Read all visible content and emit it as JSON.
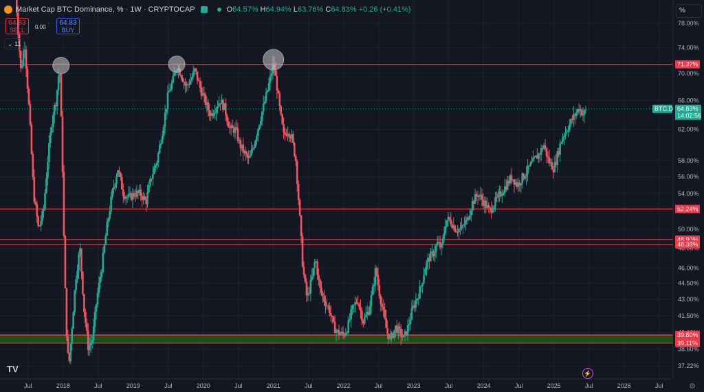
{
  "header": {
    "title": "Market Cap BTC Dominance, % · 1W · CRYPTOCAP",
    "open_label": "O",
    "open": "64.57%",
    "high_label": "H",
    "high": "64.94%",
    "low_label": "L",
    "low": "63.76%",
    "close_label": "C",
    "close": "64.83%",
    "change": "+0.26 (+0.41%)"
  },
  "trade": {
    "sell_value": "64.83",
    "sell_label": "SELL",
    "spread": "0.00",
    "buy_value": "64.83",
    "buy_label": "BUY",
    "collapse": "11"
  },
  "scale_mode": "%",
  "colors": {
    "up": "#22ab94",
    "down": "#f7525f",
    "level": "#f23645",
    "zone": "#1f4d1a",
    "zone_top": "#ff9800"
  },
  "chart_data": {
    "type": "candlestick",
    "symbol": "BTC.D",
    "last_price": "64.83%",
    "countdown": "14:02:56",
    "y_axis_ticks": [
      "78.00%",
      "74.00%",
      "70.00%",
      "66.00%",
      "62.00%",
      "58.00%",
      "56.00%",
      "54.00%",
      "52.00%",
      "50.00%",
      "48.00%",
      "46.00%",
      "44.50%",
      "43.00%",
      "41.50%",
      "40.00%",
      "38.60%",
      "37.22%"
    ],
    "y_tick_values": [
      78,
      74,
      70,
      66,
      62,
      58,
      56,
      54,
      52,
      50,
      48,
      46,
      44.5,
      43,
      41.5,
      40,
      38.6,
      37.22
    ],
    "y_scale": "log",
    "y_range": [
      36.2,
      82
    ],
    "x_axis_ticks": [
      "Jul",
      "2018",
      "Jul",
      "2019",
      "Jul",
      "2020",
      "Jul",
      "2021",
      "Jul",
      "2022",
      "Jul",
      "2023",
      "Jul",
      "2024",
      "Jul",
      "2025",
      "Jul",
      "2026",
      "Jul"
    ],
    "x_tick_values": [
      2017.5,
      2018,
      2018.5,
      2019,
      2019.5,
      2020,
      2020.5,
      2021,
      2021.5,
      2022,
      2022.5,
      2023,
      2023.5,
      2024,
      2024.5,
      2025,
      2025.5,
      2026,
      2026.5
    ],
    "x_range": [
      2017.1,
      2026.7
    ],
    "levels": [
      {
        "value": 71.37,
        "label": "71.37%"
      },
      {
        "value": 52.24,
        "label": "52.24%"
      },
      {
        "value": 48.9,
        "label": "48.90%"
      },
      {
        "value": 48.38,
        "label": "48.38%"
      },
      {
        "value": 39.8,
        "label": "39.80%"
      },
      {
        "value": 39.11,
        "label": "39.11%"
      }
    ],
    "zone": [
      39.11,
      39.8
    ],
    "circled_peaks": [
      {
        "x": 2017.97,
        "y": 71.4
      },
      {
        "x": 2019.62,
        "y": 71.6
      },
      {
        "x": 2021.0,
        "y": 72.3
      }
    ],
    "path": [
      [
        2017.3,
        88
      ],
      [
        2017.35,
        78
      ],
      [
        2017.4,
        70
      ],
      [
        2017.45,
        75
      ],
      [
        2017.52,
        64
      ],
      [
        2017.58,
        54
      ],
      [
        2017.65,
        50
      ],
      [
        2017.72,
        52
      ],
      [
        2017.78,
        58
      ],
      [
        2017.85,
        64
      ],
      [
        2017.9,
        66
      ],
      [
        2017.95,
        71.3
      ],
      [
        2017.99,
        58
      ],
      [
        2018.02,
        46
      ],
      [
        2018.05,
        40
      ],
      [
        2018.08,
        37
      ],
      [
        2018.12,
        40
      ],
      [
        2018.18,
        45
      ],
      [
        2018.24,
        48
      ],
      [
        2018.3,
        42
      ],
      [
        2018.36,
        38.7
      ],
      [
        2018.42,
        39.5
      ],
      [
        2018.48,
        43
      ],
      [
        2018.55,
        46
      ],
      [
        2018.62,
        50
      ],
      [
        2018.7,
        54
      ],
      [
        2018.78,
        57
      ],
      [
        2018.86,
        54
      ],
      [
        2018.94,
        53.5
      ],
      [
        2019.02,
        54
      ],
      [
        2019.1,
        54
      ],
      [
        2019.18,
        53
      ],
      [
        2019.26,
        56
      ],
      [
        2019.34,
        58
      ],
      [
        2019.42,
        62
      ],
      [
        2019.5,
        67
      ],
      [
        2019.57,
        69
      ],
      [
        2019.62,
        71.2
      ],
      [
        2019.68,
        70
      ],
      [
        2019.75,
        68
      ],
      [
        2019.82,
        69
      ],
      [
        2019.88,
        70.5
      ],
      [
        2019.95,
        68
      ],
      [
        2020.02,
        66
      ],
      [
        2020.1,
        64
      ],
      [
        2020.17,
        65
      ],
      [
        2020.24,
        66
      ],
      [
        2020.3,
        65
      ],
      [
        2020.38,
        62
      ],
      [
        2020.46,
        62
      ],
      [
        2020.52,
        60
      ],
      [
        2020.58,
        59
      ],
      [
        2020.65,
        58
      ],
      [
        2020.72,
        60
      ],
      [
        2020.8,
        63
      ],
      [
        2020.88,
        66
      ],
      [
        2020.95,
        69
      ],
      [
        2021.0,
        71.5
      ],
      [
        2021.05,
        68
      ],
      [
        2021.1,
        64
      ],
      [
        2021.15,
        61
      ],
      [
        2021.2,
        62
      ],
      [
        2021.26,
        61
      ],
      [
        2021.32,
        58
      ],
      [
        2021.37,
        52
      ],
      [
        2021.42,
        46
      ],
      [
        2021.48,
        43
      ],
      [
        2021.55,
        45
      ],
      [
        2021.6,
        47
      ],
      [
        2021.66,
        44
      ],
      [
        2021.72,
        43
      ],
      [
        2021.8,
        42
      ],
      [
        2021.86,
        40.5
      ],
      [
        2021.92,
        40
      ],
      [
        2022.0,
        39.8
      ],
      [
        2022.06,
        40.5
      ],
      [
        2022.12,
        42
      ],
      [
        2022.2,
        43
      ],
      [
        2022.28,
        41
      ],
      [
        2022.36,
        42
      ],
      [
        2022.42,
        44
      ],
      [
        2022.46,
        46
      ],
      [
        2022.5,
        44
      ],
      [
        2022.56,
        42
      ],
      [
        2022.62,
        40
      ],
      [
        2022.68,
        39.5
      ],
      [
        2022.74,
        40.5
      ],
      [
        2022.8,
        40
      ],
      [
        2022.86,
        39.5
      ],
      [
        2022.92,
        40.5
      ],
      [
        2022.98,
        42
      ],
      [
        2023.04,
        43
      ],
      [
        2023.1,
        44
      ],
      [
        2023.16,
        46
      ],
      [
        2023.22,
        47
      ],
      [
        2023.28,
        47.5
      ],
      [
        2023.34,
        48.5
      ],
      [
        2023.4,
        48
      ],
      [
        2023.46,
        51
      ],
      [
        2023.52,
        51
      ],
      [
        2023.6,
        50
      ],
      [
        2023.68,
        50
      ],
      [
        2023.76,
        51
      ],
      [
        2023.84,
        53
      ],
      [
        2023.92,
        54
      ],
      [
        2024.0,
        53
      ],
      [
        2024.08,
        52
      ],
      [
        2024.16,
        53
      ],
      [
        2024.24,
        54
      ],
      [
        2024.32,
        55
      ],
      [
        2024.4,
        56
      ],
      [
        2024.48,
        55
      ],
      [
        2024.56,
        56
      ],
      [
        2024.64,
        57
      ],
      [
        2024.72,
        58
      ],
      [
        2024.8,
        59
      ],
      [
        2024.86,
        60
      ],
      [
        2024.92,
        58
      ],
      [
        2025.0,
        57
      ],
      [
        2025.06,
        59
      ],
      [
        2025.12,
        61
      ],
      [
        2025.18,
        62
      ],
      [
        2025.24,
        63
      ],
      [
        2025.3,
        64
      ],
      [
        2025.36,
        65
      ],
      [
        2025.42,
        64
      ],
      [
        2025.47,
        64.8
      ]
    ]
  }
}
